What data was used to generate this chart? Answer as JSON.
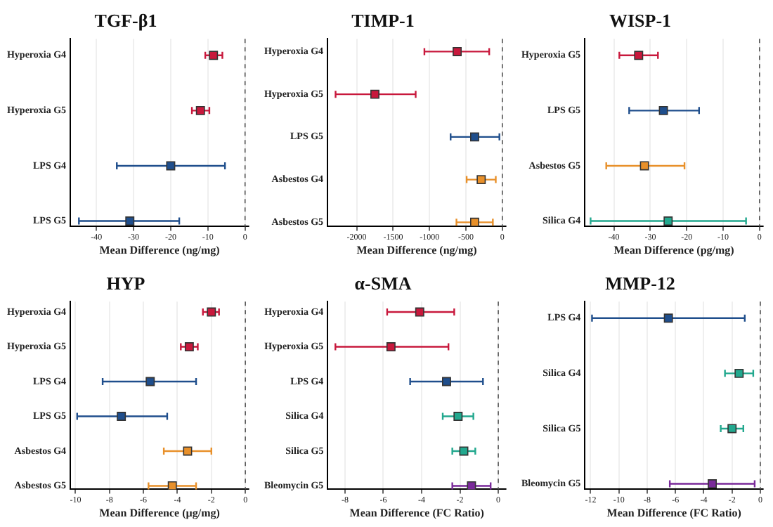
{
  "chart_data": [
    {
      "type": "scatter",
      "orientation": "horizontal",
      "title": "TGF-β1",
      "xlabel": "Mean Difference (ng/mg)",
      "categories": [
        "Hyperoxia G4",
        "Hyperoxia G5",
        "LPS G4",
        "LPS G5"
      ],
      "values": [
        -8.5,
        -12,
        -20,
        -31
      ],
      "errors": [
        [
          -10.7,
          -6.1
        ],
        [
          -14.3,
          -9.6
        ],
        [
          -34.5,
          -5.4
        ],
        [
          -44.7,
          -17.7
        ]
      ],
      "colors": [
        "#c8183c",
        "#c8183c",
        "#1f4e8c",
        "#1f4e8c"
      ],
      "xlim": [
        -47,
        1
      ],
      "xticks": [
        -40,
        -30,
        -20,
        -10,
        0
      ],
      "grid": "x",
      "marker": "square",
      "legend": false,
      "ref_lines": [
        {
          "axis": "x",
          "value": 0,
          "line_style": "dashed",
          "color": "#555555"
        }
      ]
    },
    {
      "type": "scatter",
      "orientation": "horizontal",
      "title": "TIMP-1",
      "xlabel": "Mean Difference (ng/mg)",
      "categories": [
        "Hyperoxia G4",
        "Hyperoxia G5",
        "LPS G5",
        "Asbestos G4",
        "Asbestos G5"
      ],
      "values": [
        -620,
        -1750,
        -380,
        -290,
        -380
      ],
      "errors": [
        [
          -1070,
          -180
        ],
        [
          -2290,
          -1190
        ],
        [
          -710,
          -40
        ],
        [
          -490,
          -90
        ],
        [
          -630,
          -130
        ]
      ],
      "colors": [
        "#c8183c",
        "#c8183c",
        "#1f4e8c",
        "#e8902a",
        "#e8902a"
      ],
      "xlim": [
        -2400,
        50
      ],
      "xticks": [
        -2000,
        -1500,
        -1000,
        -500,
        0
      ],
      "grid": "x",
      "marker": "square",
      "legend": false,
      "ref_lines": [
        {
          "axis": "x",
          "value": 0,
          "line_style": "dashed",
          "color": "#555555"
        }
      ]
    },
    {
      "type": "scatter",
      "orientation": "horizontal",
      "title": "WISP-1",
      "xlabel": "Mean Difference (pg/mg)",
      "categories": [
        "Hyperoxia G5",
        "LPS G5",
        "Asbestos G5",
        "Silica G4"
      ],
      "values": [
        -33.2,
        -26.4,
        -31.6,
        -25.1
      ],
      "errors": [
        [
          -38.5,
          -27.9
        ],
        [
          -35.8,
          -16.6
        ],
        [
          -42.1,
          -20.6
        ],
        [
          -46.4,
          -3.7
        ]
      ],
      "colors": [
        "#c8183c",
        "#1f4e8c",
        "#e8902a",
        "#22a88e"
      ],
      "xlim": [
        -48,
        1
      ],
      "xticks": [
        -40,
        -30,
        -20,
        -10,
        0
      ],
      "grid": "x",
      "marker": "square",
      "legend": false,
      "ref_lines": [
        {
          "axis": "x",
          "value": 0,
          "line_style": "dashed",
          "color": "#555555"
        }
      ]
    },
    {
      "type": "scatter",
      "orientation": "horizontal",
      "title": "HYP",
      "xlabel": "Mean Difference (µg/mg)",
      "categories": [
        "Hyperoxia G4",
        "Hyperoxia G5",
        "LPS G4",
        "LPS G5",
        "Asbestos G4",
        "Asbestos G5"
      ],
      "values": [
        -2,
        -3.3,
        -5.6,
        -7.3,
        -3.4,
        -4.3
      ],
      "errors": [
        [
          -2.5,
          -1.55
        ],
        [
          -3.8,
          -2.8
        ],
        [
          -8.4,
          -2.9
        ],
        [
          -9.9,
          -4.6
        ],
        [
          -4.8,
          -2
        ],
        [
          -5.7,
          -2.9
        ]
      ],
      "colors": [
        "#c8183c",
        "#c8183c",
        "#1f4e8c",
        "#1f4e8c",
        "#e8902a",
        "#e8902a"
      ],
      "xlim": [
        -10.3,
        0.2
      ],
      "xticks": [
        -10,
        -8,
        -6,
        -4,
        -2,
        0
      ],
      "grid": "x",
      "marker": "square",
      "legend": false,
      "ref_lines": [
        {
          "axis": "x",
          "value": 0,
          "line_style": "dashed",
          "color": "#555555"
        }
      ]
    },
    {
      "type": "scatter",
      "orientation": "horizontal",
      "title": "α-SMA",
      "xlabel": "Mean Difference (FC Ratio)",
      "categories": [
        "Hyperoxia G4",
        "Hyperoxia G5",
        "LPS G4",
        "Silica G4",
        "Silica G5",
        "Bleomycin G5"
      ],
      "values": [
        -4.1,
        -5.6,
        -2.7,
        -2.1,
        -1.8,
        -1.4
      ],
      "errors": [
        [
          -5.8,
          -2.3
        ],
        [
          -8.5,
          -2.6
        ],
        [
          -4.6,
          -0.8
        ],
        [
          -2.9,
          -1.3
        ],
        [
          -2.4,
          -1.2
        ],
        [
          -2.4,
          -0.4
        ]
      ],
      "colors": [
        "#c8183c",
        "#c8183c",
        "#1f4e8c",
        "#22a88e",
        "#22a88e",
        "#7a2a9a"
      ],
      "xlim": [
        -8.9,
        0.4
      ],
      "xticks": [
        -8,
        -6,
        -4,
        -2,
        0
      ],
      "grid": "x",
      "marker": "square",
      "legend": false,
      "ref_lines": [
        {
          "axis": "x",
          "value": 0,
          "line_style": "dashed",
          "color": "#555555"
        }
      ]
    },
    {
      "type": "scatter",
      "orientation": "horizontal",
      "title": "MMP-12",
      "xlabel": "Mean Difference (FC Ratio)",
      "categories": [
        "LPS G4",
        "Silica G4",
        "Silica G5",
        "Bleomycin G5"
      ],
      "values": [
        -6.5,
        -1.5,
        -2,
        -3.4
      ],
      "errors": [
        [
          -11.9,
          -1.1
        ],
        [
          -2.5,
          -0.5
        ],
        [
          -2.8,
          -1.2
        ],
        [
          -6.4,
          -0.4
        ]
      ],
      "colors": [
        "#1f4e8c",
        "#22a88e",
        "#22a88e",
        "#7a2a9a"
      ],
      "xlim": [
        -12.4,
        0.2
      ],
      "xticks": [
        -12,
        -10,
        -8,
        -6,
        -4,
        -2,
        0
      ],
      "grid": "x",
      "marker": "square",
      "legend": false,
      "ref_lines": [
        {
          "axis": "x",
          "value": 0,
          "line_style": "dashed",
          "color": "#555555"
        }
      ]
    }
  ]
}
